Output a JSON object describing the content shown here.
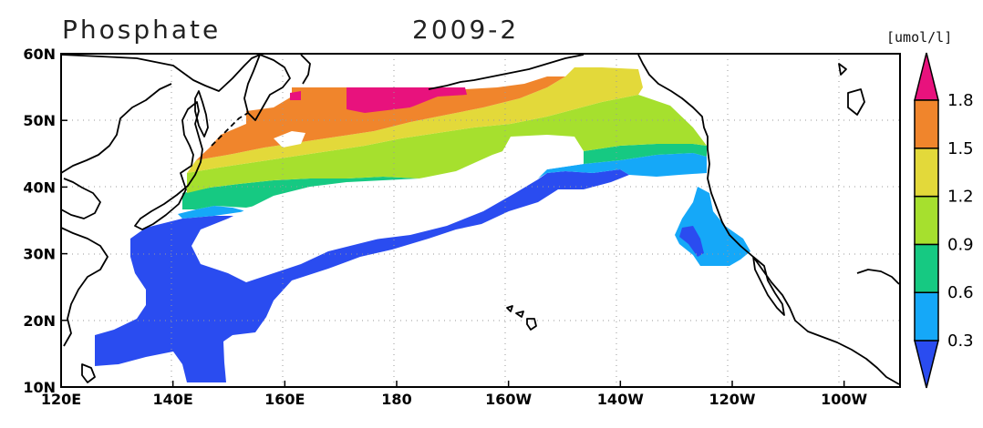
{
  "title": {
    "variable": "Phosphate",
    "date": "2009-2"
  },
  "units": "[umol/l]",
  "map": {
    "lon_range": [
      120,
      270
    ],
    "lat_range": [
      10,
      60
    ],
    "lon_ticks": [
      {
        "value": 120,
        "label": "120E"
      },
      {
        "value": 140,
        "label": "140E"
      },
      {
        "value": 160,
        "label": "160E"
      },
      {
        "value": 180,
        "label": "180"
      },
      {
        "value": 200,
        "label": "160W"
      },
      {
        "value": 220,
        "label": "140W"
      },
      {
        "value": 240,
        "label": "120W"
      },
      {
        "value": 260,
        "label": "100W"
      }
    ],
    "lat_ticks": [
      {
        "value": 10,
        "label": "10N"
      },
      {
        "value": 20,
        "label": "20N"
      },
      {
        "value": 30,
        "label": "30N"
      },
      {
        "value": 40,
        "label": "40N"
      },
      {
        "value": 50,
        "label": "50N"
      },
      {
        "value": 60,
        "label": "60N"
      }
    ],
    "grid": "dotted"
  },
  "colorbar": {
    "levels": [
      "0.3",
      "0.6",
      "0.9",
      "1.2",
      "1.5",
      "1.8"
    ],
    "colors": [
      "#2a4cf0",
      "#15a8f8",
      "#16c982",
      "#a6e02e",
      "#e3d93a",
      "#f0852c",
      "#e8127d"
    ],
    "orientation": "vertical",
    "placement": "right"
  },
  "legend_colors": {
    "below_0.3": "#2a4cf0",
    "0.3_0.6": "#15a8f8",
    "0.6_0.9": "#16c982",
    "0.9_1.2": "#a6e02e",
    "1.2_1.5": "#e3d93a",
    "1.5_1.8": "#f0852c",
    "above_1.8": "#e8127d"
  }
}
